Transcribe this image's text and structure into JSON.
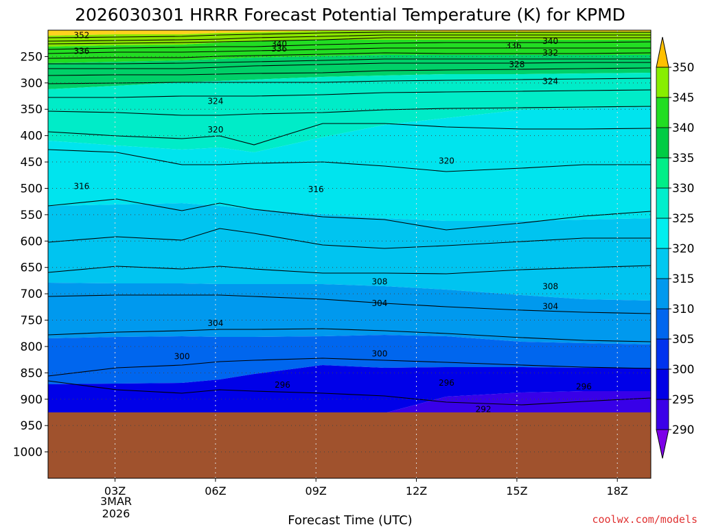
{
  "chart_data": {
    "type": "heatmap",
    "title": "2026030301 HRRR Forecast Potential Temperature (K) for KPMD",
    "xlabel": "Forecast Time (UTC)",
    "ylabel": "",
    "credit": "coolwx.com/models",
    "x_ticks": [
      "03Z",
      "06Z",
      "09Z",
      "12Z",
      "15Z",
      "18Z"
    ],
    "x_date_label": [
      "3MAR",
      "2026"
    ],
    "x_range_hours": [
      1,
      19
    ],
    "y_axis": "pressure (hPa), inverted",
    "y_ticks": [
      250,
      300,
      350,
      400,
      450,
      500,
      550,
      600,
      650,
      700,
      750,
      800,
      850,
      900,
      950,
      1000
    ],
    "y_range": [
      200,
      1050
    ],
    "surface_pressure_hPa": 925,
    "colorbar_levels": [
      290,
      295,
      300,
      305,
      310,
      315,
      320,
      325,
      330,
      335,
      340,
      345,
      350
    ],
    "colorbar_colors": [
      "#7d00e8",
      "#3b00e8",
      "#0000e6",
      "#0033ee",
      "#0066ee",
      "#0099ee",
      "#00c8f0",
      "#00eeee",
      "#00eecc",
      "#00ee88",
      "#00cc44",
      "#22dd22",
      "#88ee00",
      "#ffff00",
      "#ffc000"
    ],
    "contour_labels": [
      {
        "value": "352",
        "hour": 2.0,
        "p": 210
      },
      {
        "value": "340",
        "hour": 7.9,
        "p": 226
      },
      {
        "value": "336",
        "hour": 7.9,
        "p": 235
      },
      {
        "value": "340",
        "hour": 16.0,
        "p": 221
      },
      {
        "value": "336",
        "hour": 14.9,
        "p": 229
      },
      {
        "value": "336",
        "hour": 2.0,
        "p": 240
      },
      {
        "value": "332",
        "hour": 16.0,
        "p": 243
      },
      {
        "value": "328",
        "hour": 15.0,
        "p": 265
      },
      {
        "value": "324",
        "hour": 16.0,
        "p": 297
      },
      {
        "value": "324",
        "hour": 6.0,
        "p": 335
      },
      {
        "value": "320",
        "hour": 6.0,
        "p": 389
      },
      {
        "value": "320",
        "hour": 12.9,
        "p": 448
      },
      {
        "value": "316",
        "hour": 2.0,
        "p": 496
      },
      {
        "value": "316",
        "hour": 9.0,
        "p": 502
      },
      {
        "value": "308",
        "hour": 10.9,
        "p": 677
      },
      {
        "value": "308",
        "hour": 16.0,
        "p": 686
      },
      {
        "value": "304",
        "hour": 6.0,
        "p": 756
      },
      {
        "value": "304",
        "hour": 10.9,
        "p": 718
      },
      {
        "value": "304",
        "hour": 16.0,
        "p": 724
      },
      {
        "value": "300",
        "hour": 5.0,
        "p": 819
      },
      {
        "value": "300",
        "hour": 10.9,
        "p": 814
      },
      {
        "value": "296",
        "hour": 8.0,
        "p": 873
      },
      {
        "value": "296",
        "hour": 12.9,
        "p": 869
      },
      {
        "value": "296",
        "hour": 17.0,
        "p": 876
      },
      {
        "value": "292",
        "hour": 14.0,
        "p": 919
      }
    ]
  }
}
